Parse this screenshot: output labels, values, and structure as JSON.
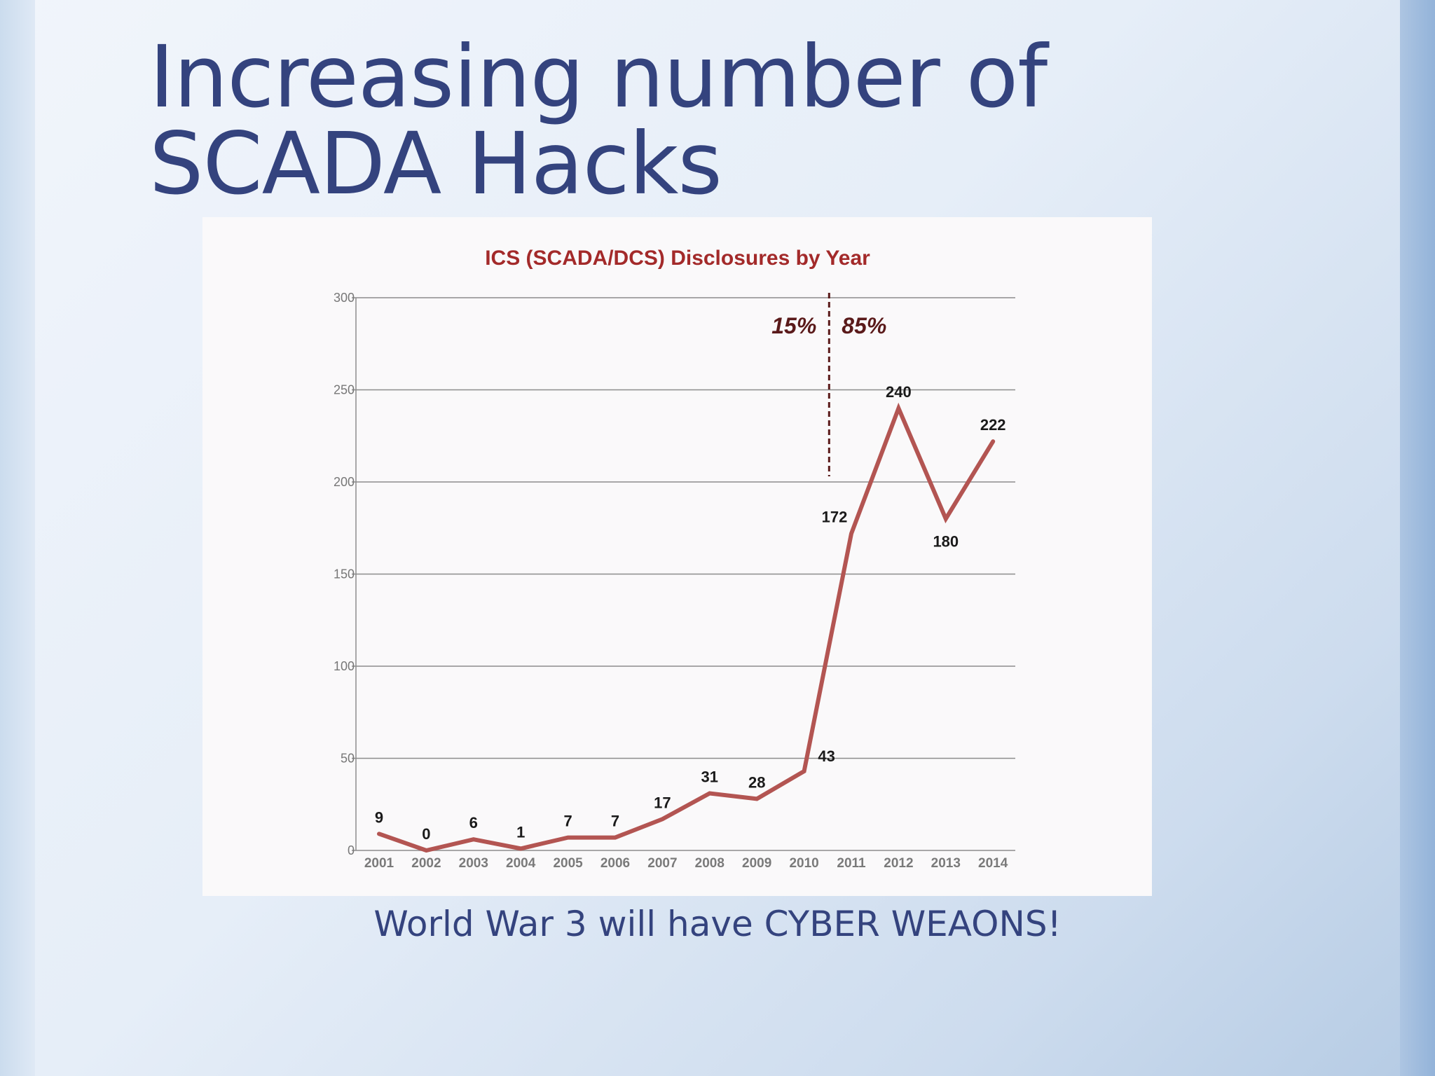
{
  "slide": {
    "title_line1": "Increasing number of",
    "title_line2": "SCADA Hacks",
    "caption": "World War 3 will have CYBER WEAONS!"
  },
  "colors": {
    "title": "#34437e",
    "line": "#b35552",
    "chart_title": "#a32a2a",
    "split": "#5a1a1a",
    "grid": "#8c8c8c"
  },
  "chart_data": {
    "type": "line",
    "title": "ICS (SCADA/DCS) Disclosures by Year",
    "xlabel": "",
    "ylabel": "",
    "categories": [
      "2001",
      "2002",
      "2003",
      "2004",
      "2005",
      "2006",
      "2007",
      "2008",
      "2009",
      "2010",
      "2011",
      "2012",
      "2013",
      "2014"
    ],
    "series": [
      {
        "values": [
          9,
          0,
          6,
          1,
          7,
          7,
          17,
          31,
          28,
          43,
          172,
          240,
          180,
          222
        ]
      }
    ],
    "ylim": [
      0,
      300
    ],
    "yticks": [
      0,
      50,
      100,
      150,
      200,
      250,
      300
    ],
    "grid": true,
    "annotations": [
      {
        "text": "15%",
        "side": "left"
      },
      {
        "text": "85%",
        "side": "right"
      }
    ]
  }
}
